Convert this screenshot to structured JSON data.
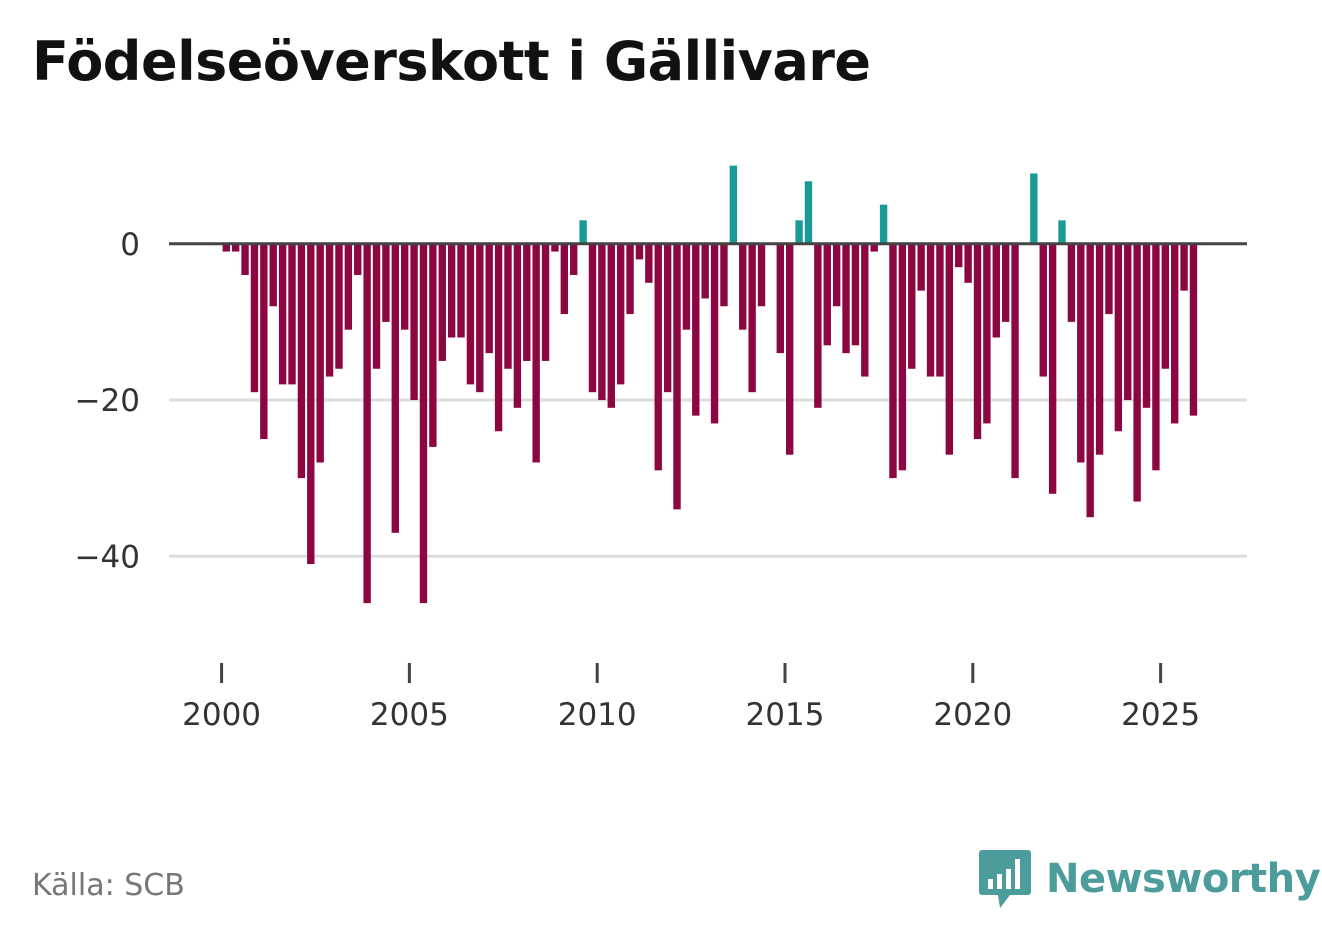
{
  "chart_data": {
    "type": "bar",
    "title": "Födelseöverskott i Gällivare",
    "xlabel": "",
    "ylabel": "",
    "ylim": [
      -52,
      12
    ],
    "xlim": [
      1998.6,
      2027.3
    ],
    "yticks": [
      0,
      -20,
      -40
    ],
    "ytick_labels": [
      "0",
      "−20",
      "−40"
    ],
    "xticks": [
      2000,
      2005,
      2010,
      2015,
      2020,
      2025
    ],
    "xtick_labels": [
      "2000",
      "2005",
      "2010",
      "2015",
      "2020",
      "2025"
    ],
    "colors": {
      "positive": "#1a9a94",
      "negative": "#8c0641",
      "zero_line": "#444444",
      "grid": "#dddddd"
    },
    "x": [
      2000.125,
      2000.375,
      2000.625,
      2000.875,
      2001.125,
      2001.375,
      2001.625,
      2001.875,
      2002.125,
      2002.375,
      2002.625,
      2002.875,
      2003.125,
      2003.375,
      2003.625,
      2003.875,
      2004.125,
      2004.375,
      2004.625,
      2004.875,
      2005.125,
      2005.375,
      2005.625,
      2005.875,
      2006.125,
      2006.375,
      2006.625,
      2006.875,
      2007.125,
      2007.375,
      2007.625,
      2007.875,
      2008.125,
      2008.375,
      2008.625,
      2008.875,
      2009.125,
      2009.375,
      2009.625,
      2009.875,
      2010.125,
      2010.375,
      2010.625,
      2010.875,
      2011.125,
      2011.375,
      2011.625,
      2011.875,
      2012.125,
      2012.375,
      2012.625,
      2012.875,
      2013.125,
      2013.375,
      2013.625,
      2013.875,
      2014.125,
      2014.375,
      2014.625,
      2014.875,
      2015.125,
      2015.375,
      2015.625,
      2015.875,
      2016.125,
      2016.375,
      2016.625,
      2016.875,
      2017.125,
      2017.375,
      2017.625,
      2017.875,
      2018.125,
      2018.375,
      2018.625,
      2018.875,
      2019.125,
      2019.375,
      2019.625,
      2019.875,
      2020.125,
      2020.375,
      2020.625,
      2020.875,
      2021.125,
      2021.375,
      2021.625,
      2021.875,
      2022.125,
      2022.375,
      2022.625,
      2022.875,
      2023.125,
      2023.375,
      2023.625,
      2023.875,
      2024.125,
      2024.375,
      2024.625,
      2024.875,
      2025.125,
      2025.375,
      2025.625,
      2025.875
    ],
    "values": [
      -1,
      -1,
      -4,
      -19,
      -25,
      -8,
      -18,
      -18,
      -30,
      -41,
      -28,
      -17,
      -16,
      -11,
      -4,
      -46,
      -16,
      -10,
      -37,
      -11,
      -20,
      -46,
      -26,
      -15,
      -12,
      -12,
      -18,
      -19,
      -14,
      -24,
      -16,
      -21,
      -15,
      -28,
      -15,
      -1,
      -9,
      -4,
      3,
      -19,
      -20,
      -21,
      -18,
      -9,
      -2,
      -5,
      -29,
      -19,
      -34,
      -11,
      -22,
      -7,
      -23,
      -8,
      10,
      -11,
      -19,
      -8,
      0,
      -14,
      -27,
      3,
      8,
      -21,
      -13,
      -8,
      -14,
      -13,
      -17,
      -1,
      5,
      -30,
      -29,
      -16,
      -6,
      -17,
      -17,
      -27,
      -3,
      -5,
      -25,
      -23,
      -12,
      -10,
      -30,
      0,
      9,
      -17,
      -32,
      3,
      -10,
      -28,
      -35,
      -27,
      -9,
      -24,
      -20,
      -33,
      -21,
      -29,
      -16,
      -23,
      -6,
      -22
    ]
  },
  "source": {
    "text": "Källa: SCB"
  },
  "brand": {
    "name": "Newsworthy",
    "logo_icon": "bar-chart-speech-bubble-icon",
    "color": "#4b9c9a"
  }
}
